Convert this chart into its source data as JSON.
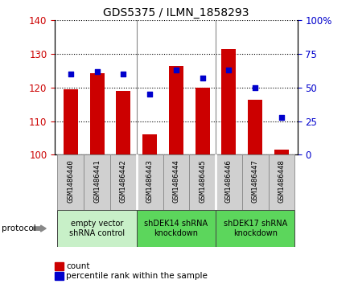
{
  "title": "GDS5375 / ILMN_1858293",
  "samples": [
    "GSM1486440",
    "GSM1486441",
    "GSM1486442",
    "GSM1486443",
    "GSM1486444",
    "GSM1486445",
    "GSM1486446",
    "GSM1486447",
    "GSM1486448"
  ],
  "count_values": [
    119.5,
    124.2,
    119.0,
    106.0,
    126.5,
    120.0,
    131.5,
    116.5,
    101.5
  ],
  "percentile_values": [
    60,
    62,
    60,
    45,
    63,
    57,
    63,
    50,
    28
  ],
  "ylim_left": [
    100,
    140
  ],
  "ylim_right": [
    0,
    100
  ],
  "yticks_left": [
    100,
    110,
    120,
    130,
    140
  ],
  "yticks_right": [
    0,
    25,
    50,
    75,
    100
  ],
  "groups": [
    {
      "label": "empty vector\nshRNA control",
      "start": 0,
      "end": 3,
      "color": "#c8f0c8"
    },
    {
      "label": "shDEK14 shRNA\nknockdown",
      "start": 3,
      "end": 6,
      "color": "#5cd65c"
    },
    {
      "label": "shDEK17 shRNA\nknockdown",
      "start": 6,
      "end": 9,
      "color": "#5cd65c"
    }
  ],
  "bar_color": "#CC0000",
  "scatter_color": "#0000CC",
  "bar_width": 0.55,
  "protocol_label": "protocol",
  "legend_count_label": "count",
  "legend_percentile_label": "percentile rank within the sample",
  "left_ylabel_color": "#CC0000",
  "right_ylabel_color": "#0000CC",
  "sample_box_color": "#d0d0d0",
  "sample_box_border": "#888888"
}
